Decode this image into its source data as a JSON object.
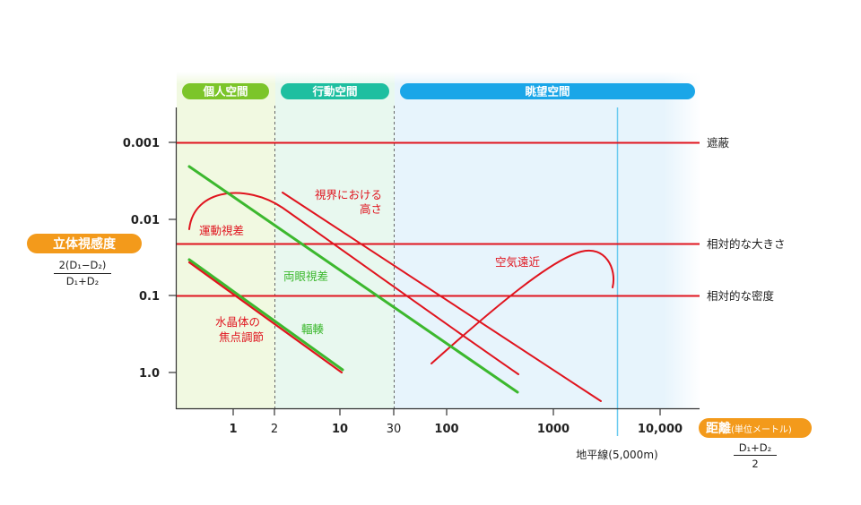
{
  "zones": {
    "personal": {
      "label": "個人空間",
      "color": "#7cc52a",
      "bg": "#f1f9e1"
    },
    "action": {
      "label": "行動空間",
      "color": "#1ebfa0",
      "bg": "#e8f8ef"
    },
    "view": {
      "label": "眺望空間",
      "color": "#1aa6e8",
      "bg": "#e7f4fc"
    }
  },
  "y_axis": {
    "title": "立体視感度",
    "formula_numerator": "2(D₁−D₂)",
    "formula_denominator": "D₁+D₂",
    "ticks": [
      "0.001",
      "0.01",
      "0.1",
      "1.0"
    ]
  },
  "x_axis": {
    "title": "距離",
    "title_unit": "(単位メートル)",
    "formula_numerator": "D₁+D₂",
    "formula_denominator": "2",
    "ticks": [
      "1",
      "2",
      "10",
      "30",
      "100",
      "1000",
      "10,000"
    ]
  },
  "horizon_label": "地平線(5,000m)",
  "thresholds": [
    "遮蔽",
    "相対的な大きさ",
    "相対的な密度"
  ],
  "curve_labels": {
    "height_1": "視界における",
    "height_2": "高さ",
    "motion": "運動視差",
    "binocular": "両眼視差",
    "aerial": "空気遠近",
    "lens_1": "水晶体の",
    "lens_2": "焦点調節",
    "convergence": "輻輳"
  },
  "colors": {
    "red": "#e0141e",
    "green": "#3cb82e",
    "orange": "#f39a1b",
    "horizon": "#6ccbf0",
    "axis": "#333333"
  }
}
